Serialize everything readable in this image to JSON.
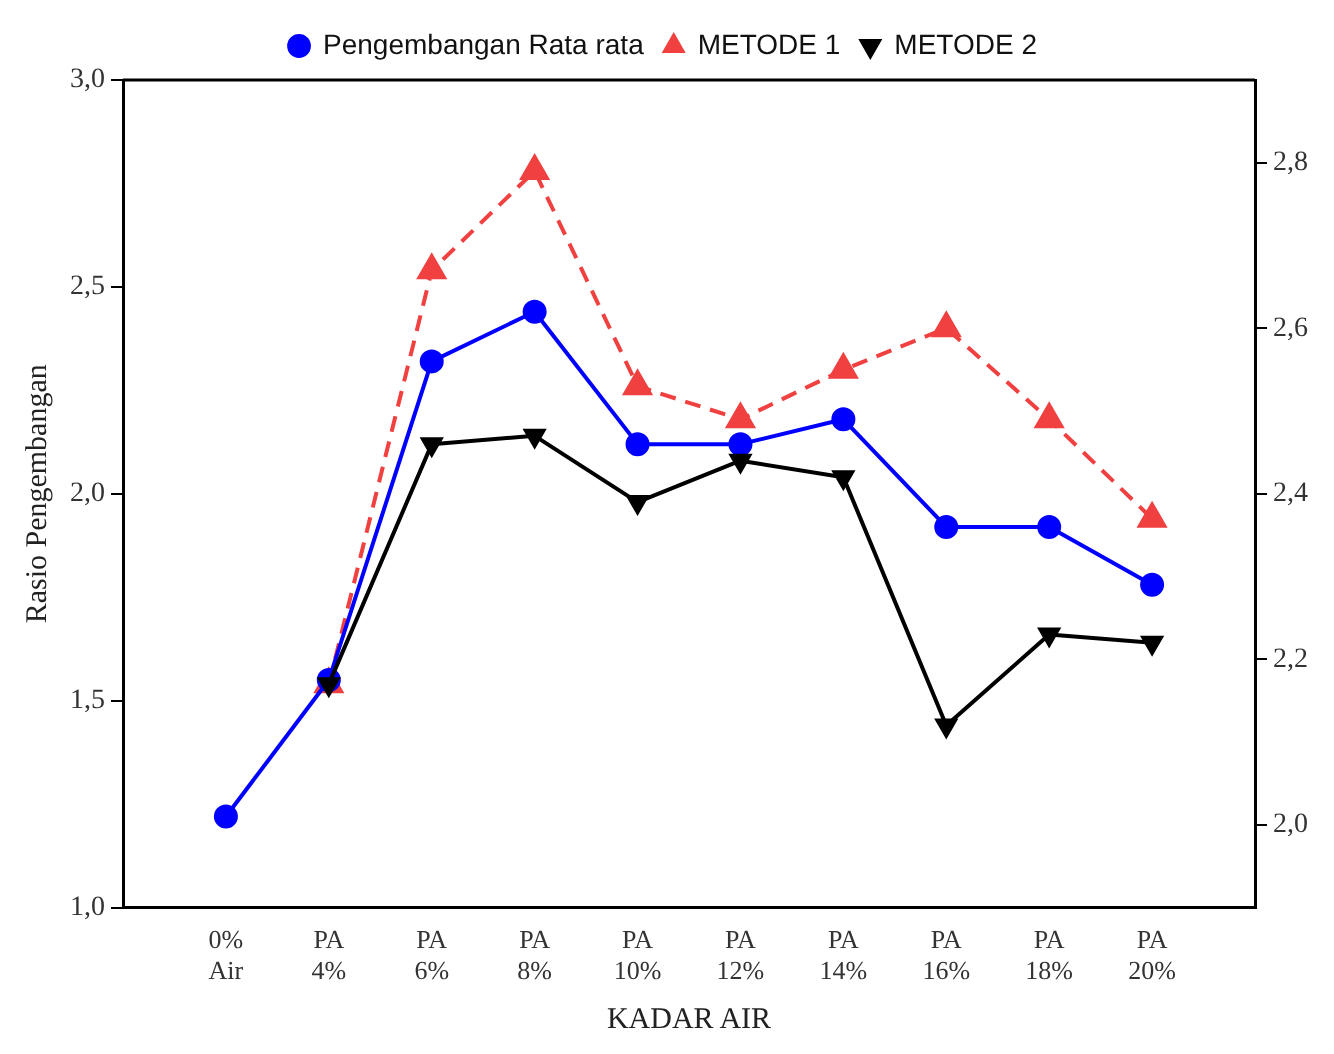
{
  "chart_data": {
    "type": "line",
    "xlabel": "KADAR AIR",
    "ylabel": "Rasio Pengembangan",
    "categories": [
      "0% Air",
      "PA 4%",
      "PA 6%",
      "PA 8%",
      "PA 10%",
      "PA 12%",
      "PA 14%",
      "PA 16%",
      "PA 18%",
      "PA 20%"
    ],
    "ylim": [
      1.0,
      3.0
    ],
    "yticks": [
      {
        "value": 1.0,
        "label": "1,0"
      },
      {
        "value": 1.5,
        "label": "1,5"
      },
      {
        "value": 2.0,
        "label": "2,0"
      },
      {
        "value": 2.5,
        "label": "2,5"
      },
      {
        "value": 3.0,
        "label": "3,0"
      }
    ],
    "y2lim": [
      1.9,
      2.9
    ],
    "y2ticks": [
      {
        "value": 2.0,
        "label": "2,0"
      },
      {
        "value": 2.2,
        "label": "2,2"
      },
      {
        "value": 2.4,
        "label": "2,4"
      },
      {
        "value": 2.6,
        "label": "2,6"
      },
      {
        "value": 2.8,
        "label": "2,8"
      }
    ],
    "grid": false,
    "legend": "top",
    "series": [
      {
        "name": "Pengembangan Rata rata",
        "color": "#0000ff",
        "marker": "circle",
        "line_style": "solid",
        "values": [
          1.22,
          1.55,
          2.32,
          2.44,
          2.12,
          2.12,
          2.18,
          1.92,
          1.92,
          1.78
        ]
      },
      {
        "name": "METODE 1",
        "color": "#f04040",
        "marker": "triangle",
        "line_style": "dashed",
        "axis": "y2",
        "values": [
          null,
          2.17,
          2.67,
          2.79,
          2.53,
          2.49,
          2.55,
          2.6,
          2.49,
          2.37
        ]
      },
      {
        "name": "METODE 2",
        "color": "#000000",
        "marker": "triangle",
        "line_style": "solid",
        "axis": "y2",
        "values": [
          null,
          2.17,
          2.46,
          2.47,
          2.39,
          2.44,
          2.42,
          2.12,
          2.23,
          2.22
        ]
      }
    ]
  }
}
